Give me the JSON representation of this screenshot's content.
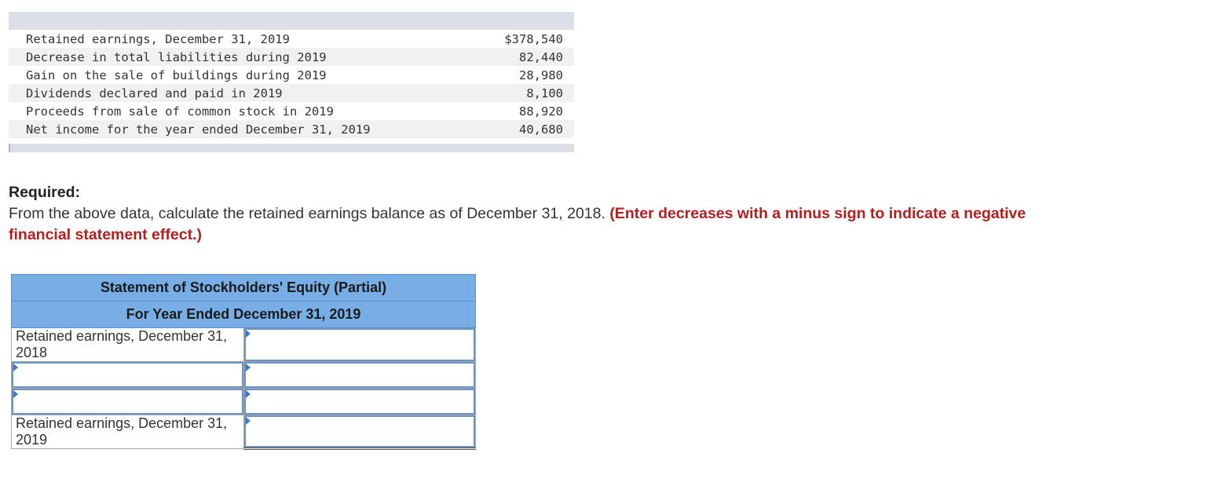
{
  "given_data": {
    "rows": [
      {
        "label": "Retained earnings, December 31, 2019",
        "value": "$378,540"
      },
      {
        "label": "Decrease in total liabilities during 2019",
        "value": "82,440"
      },
      {
        "label": "Gain on the sale of buildings during 2019",
        "value": "28,980"
      },
      {
        "label": "Dividends declared and paid in 2019",
        "value": "8,100"
      },
      {
        "label": "Proceeds from sale of common stock in 2019",
        "value": "88,920"
      },
      {
        "label": "Net income for the year ended December 31, 2019",
        "value": "40,680"
      }
    ]
  },
  "question": {
    "heading": "Required:",
    "text": "From the above data, calculate the retained earnings balance as of December 31, 2018.",
    "note": "(Enter decreases with a minus sign to indicate a negative financial statement effect.)"
  },
  "statement": {
    "title": "Statement of Stockholders' Equity (Partial)",
    "subtitle": "For Year Ended December 31, 2019",
    "opening_label": "Retained earnings, December 31, 2018",
    "closing_label": "Retained earnings, December 31, 2019"
  },
  "colors": {
    "header_blue": "#78aee6",
    "note_red": "#b21f1f",
    "input_border": "#6a93c3"
  }
}
